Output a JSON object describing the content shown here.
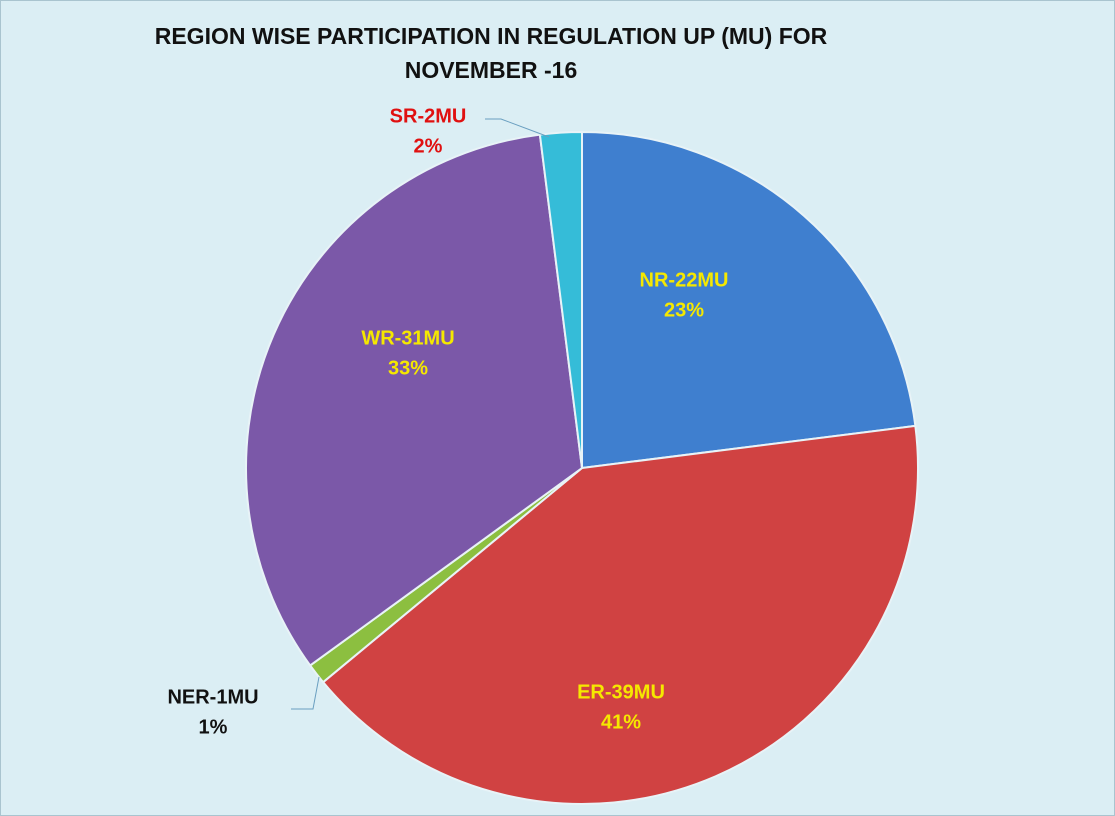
{
  "chart_data": {
    "type": "pie",
    "title": "REGION WISE PARTICIPATION IN REGULATION UP (MU) FOR\nNOVEMBER -16",
    "categories": [
      "NR-22MU",
      "ER-39MU",
      "NER-1MU",
      "WR-31MU",
      "SR-2MU"
    ],
    "values": [
      23,
      41,
      1,
      33,
      2
    ],
    "value_labels": [
      "23%",
      "41%",
      "1%",
      "33%",
      "2%"
    ],
    "colors": [
      "#3f7fcf",
      "#d04242",
      "#8cbf40",
      "#7b58a8",
      "#35bcd8"
    ]
  }
}
